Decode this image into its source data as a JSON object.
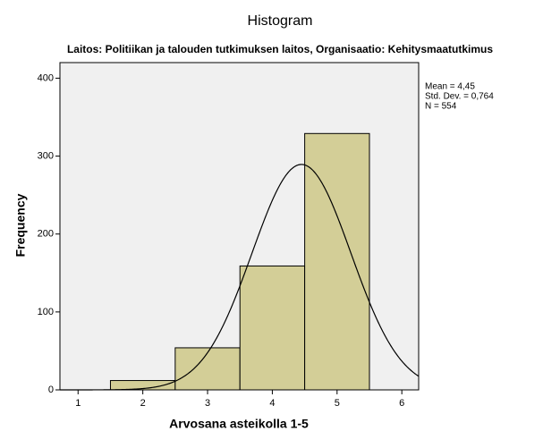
{
  "chart_data": {
    "type": "histogram",
    "title": "Histogram",
    "subtitle": "Laitos: Politiikan ja talouden tutkimuksen laitos, Organisaatio: Kehitysmaatutkimus",
    "x_label": "Arvosana asteikolla 1-5",
    "y_label": "Frequency",
    "bins": [
      1.5,
      2.5,
      3.5,
      4.5,
      5.5
    ],
    "values": [
      12,
      54,
      159,
      329
    ],
    "color": "#d3ce97",
    "xlim": [
      0.72,
      6.26
    ],
    "xticks": [
      1,
      2,
      3,
      4,
      5,
      6
    ],
    "ylim": [
      0,
      420
    ],
    "yticks": [
      0,
      100,
      200,
      300,
      400
    ],
    "stats": {
      "mean": {
        "value": 4.45,
        "label": "Mean = 4,45"
      },
      "sd": {
        "value": 0.764,
        "label": "Std. Dev. = 0,764"
      },
      "n": {
        "value": 554,
        "label": "N = 554"
      }
    }
  }
}
